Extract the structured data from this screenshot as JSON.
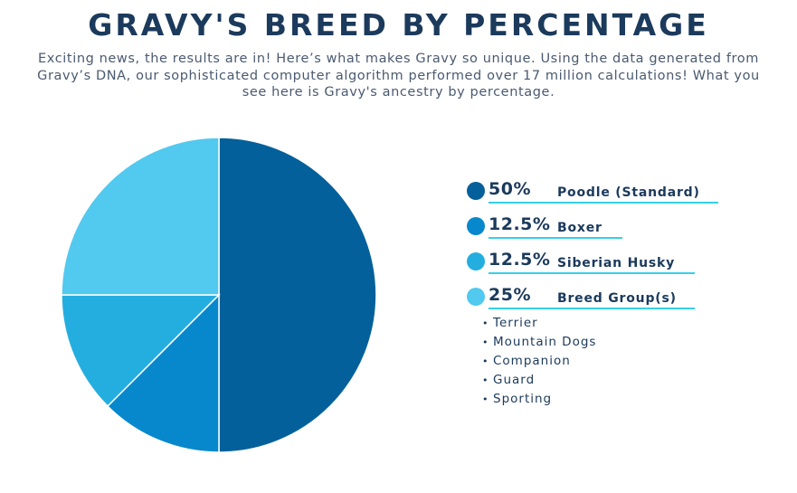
{
  "header": {
    "title": "GRAVY'S BREED BY PERCENTAGE",
    "subtitle": "Exciting news, the results are in! Here’s what makes Gravy so unique. Using the data generated from Gravy’s DNA, our sophisticated computer algorithm performed over 17 million calculations! What you see here is Gravy's ancestry by percentage."
  },
  "chart_data": {
    "type": "pie",
    "categories": [
      "Poodle (Standard)",
      "Boxer",
      "Siberian Husky",
      "Breed Group(s)"
    ],
    "values": [
      50,
      12.5,
      12.5,
      25
    ],
    "labels": [
      "50%",
      "12.5%",
      "12.5%",
      "25%"
    ],
    "colors": [
      "#04609a",
      "#0788cc",
      "#24aee0",
      "#52c9ee"
    ],
    "breed_groups": [
      "Terrier",
      "Mountain Dogs",
      "Companion",
      "Guard",
      "Sporting"
    ]
  }
}
